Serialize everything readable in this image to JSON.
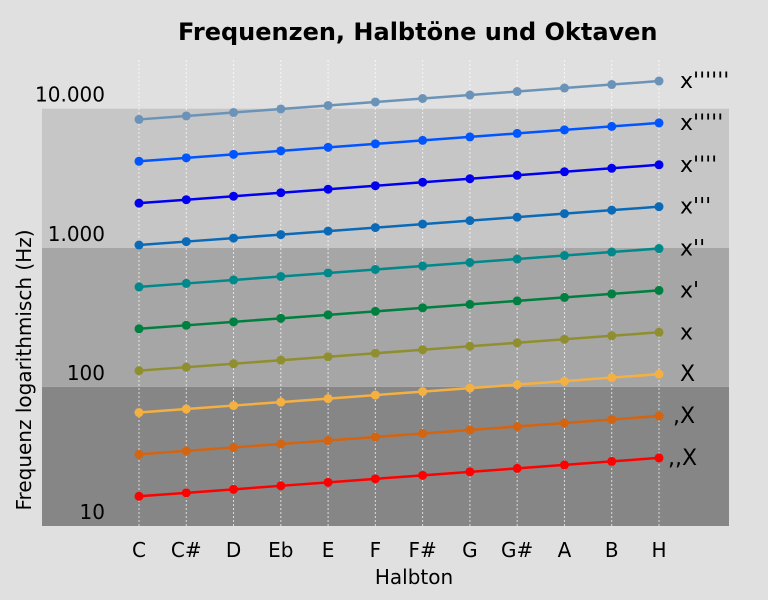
{
  "chart_data": {
    "type": "line",
    "title": "Frequenzen, Halbtöne und Oktaven",
    "xlabel": "Halbton",
    "ylabel": "Frequenz logarithmisch (Hz)",
    "yscale": "log",
    "ylim": [
      10,
      20000
    ],
    "grid": "vertical dotted",
    "categories": [
      "C",
      "C#",
      "D",
      "Eb",
      "E",
      "F",
      "F#",
      "G",
      "G#",
      "A",
      "B",
      "H"
    ],
    "ytick_labels": [
      {
        "value": 10,
        "label": "10"
      },
      {
        "value": 100,
        "label": "100"
      },
      {
        "value": 1000,
        "label": "1.000"
      },
      {
        "value": 10000,
        "label": "10.000"
      }
    ],
    "bands": [
      {
        "from": 10,
        "to": 100,
        "color": "#868686"
      },
      {
        "from": 100,
        "to": 1000,
        "color": "#a6a6a6"
      },
      {
        "from": 1000,
        "to": 10000,
        "color": "#c6c6c6"
      }
    ],
    "series": [
      {
        "name": ",,X",
        "color": "#ff0000",
        "values": [
          16.35,
          17.32,
          18.35,
          19.45,
          20.6,
          21.83,
          23.12,
          24.5,
          25.96,
          27.5,
          29.14,
          30.87
        ]
      },
      {
        "name": ",X",
        "color": "#d4640f",
        "values": [
          32.7,
          34.65,
          36.71,
          38.89,
          41.2,
          43.65,
          46.25,
          49.0,
          51.91,
          55.0,
          58.27,
          61.74
        ]
      },
      {
        "name": "X",
        "color": "#f5b042",
        "values": [
          65.41,
          69.3,
          73.42,
          77.78,
          82.41,
          87.31,
          92.5,
          98.0,
          103.83,
          110.0,
          116.54,
          123.47
        ]
      },
      {
        "name": "x",
        "color": "#8f8f30",
        "values": [
          130.81,
          138.59,
          146.83,
          155.56,
          164.81,
          174.61,
          185.0,
          196.0,
          207.65,
          220.0,
          233.08,
          246.94
        ]
      },
      {
        "name": "x'",
        "color": "#008040",
        "values": [
          261.63,
          277.18,
          293.66,
          311.13,
          329.63,
          349.23,
          369.99,
          392.0,
          415.3,
          440.0,
          466.16,
          493.88
        ]
      },
      {
        "name": "x''",
        "color": "#00888a",
        "values": [
          523.25,
          554.37,
          587.33,
          622.25,
          659.26,
          698.46,
          739.99,
          783.99,
          830.61,
          880.0,
          932.33,
          987.77
        ]
      },
      {
        "name": "x'''",
        "color": "#0a6ab8",
        "values": [
          1046.5,
          1108.73,
          1174.66,
          1244.51,
          1318.51,
          1396.91,
          1479.98,
          1567.98,
          1661.22,
          1760.0,
          1864.66,
          1975.53
        ]
      },
      {
        "name": "x''''",
        "color": "#0000ee",
        "values": [
          2093.0,
          2217.46,
          2349.32,
          2489.02,
          2637.02,
          2793.83,
          2959.96,
          3135.96,
          3322.44,
          3520.0,
          3729.31,
          3951.07
        ]
      },
      {
        "name": "x'''''",
        "color": "#0055ff",
        "values": [
          4186.01,
          4434.92,
          4698.64,
          4978.03,
          5274.04,
          5587.65,
          5919.91,
          6271.93,
          6644.88,
          7040.0,
          7458.62,
          7902.13
        ]
      },
      {
        "name": "x''''''",
        "color": "#6b93b8",
        "values": [
          8372.02,
          8869.84,
          9397.27,
          9956.06,
          10548.08,
          11175.3,
          11839.82,
          12543.85,
          13289.75,
          14080.0,
          14917.24,
          15804.27
        ]
      }
    ]
  }
}
